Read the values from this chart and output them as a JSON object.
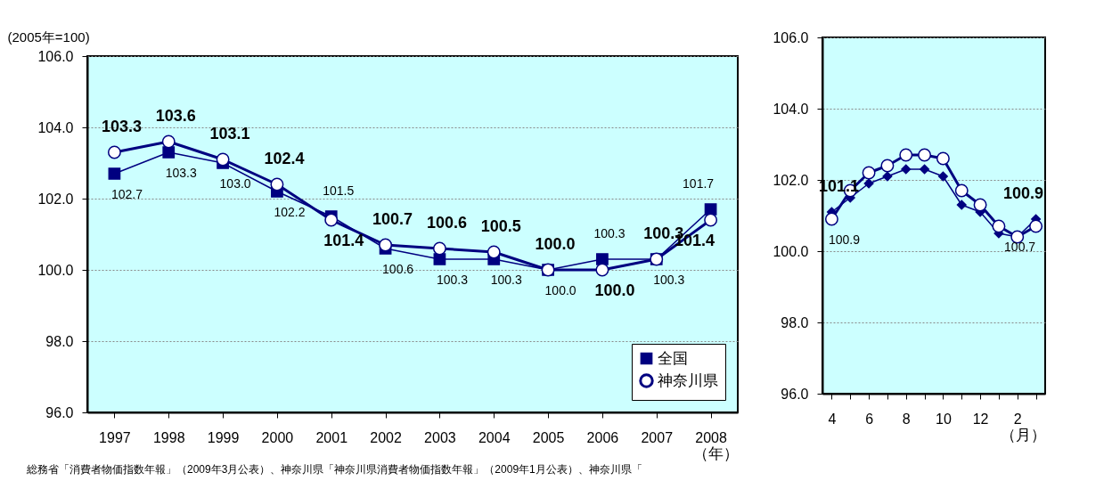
{
  "chart_data": [
    {
      "type": "line",
      "ylabel": "(2005年=100)",
      "xlabel": "（年）",
      "categories": [
        "1997",
        "1998",
        "1999",
        "2000",
        "2001",
        "2002",
        "2003",
        "2004",
        "2005",
        "2006",
        "2007",
        "2008"
      ],
      "ylim": [
        96,
        106
      ],
      "yticks": [
        {
          "value": 96,
          "label": "96.0"
        },
        {
          "value": 98,
          "label": "98.0"
        },
        {
          "value": 100,
          "label": "100.0"
        },
        {
          "value": 102,
          "label": "102.0"
        },
        {
          "value": 104,
          "label": "104.0"
        },
        {
          "value": 106,
          "label": "106.0"
        }
      ],
      "grid": "y",
      "legend": "bottom right",
      "series": [
        {
          "name": "全国",
          "color": "#000080",
          "marker": "square",
          "values": [
            102.7,
            103.3,
            103.0,
            102.2,
            101.5,
            100.6,
            100.3,
            100.3,
            100.0,
            100.3,
            100.3,
            101.7
          ],
          "value_labels": [
            "102.7",
            "103.3",
            "103.0",
            "102.2",
            "101.5",
            "100.6",
            "100.3",
            "100.3",
            "100.0",
            "100.3",
            "100.3",
            "101.7"
          ]
        },
        {
          "name": "神奈川県",
          "color": "#000080",
          "marker": "circle",
          "values": [
            103.3,
            103.6,
            103.1,
            102.4,
            101.4,
            100.7,
            100.6,
            100.5,
            100.0,
            100.0,
            100.3,
            101.4
          ],
          "value_labels": [
            "103.3",
            "103.6",
            "103.1",
            "102.4",
            "101.4",
            "100.7",
            "100.6",
            "100.5",
            "100.0",
            "100.0",
            "100.3",
            "101.4"
          ]
        }
      ],
      "annotations": [
        "総務省「消費者物価指数年報」（2009年3月公表）、神奈川県「神奈川県消費者物価指数年報」（2009年1月公表）、神奈川県「"
      ]
    },
    {
      "type": "line",
      "xlabel": "（月）",
      "categories": [
        "4",
        null,
        "6",
        null,
        "8",
        null,
        "10",
        null,
        "12",
        null,
        "2",
        null
      ],
      "ylim": [
        96,
        106
      ],
      "yticks": [
        {
          "value": 96,
          "label": "96.0"
        },
        {
          "value": 98,
          "label": "98.0"
        },
        {
          "value": 100,
          "label": "100.0"
        },
        {
          "value": 102,
          "label": "102.0"
        },
        {
          "value": 104,
          "label": "104.0"
        },
        {
          "value": 106,
          "label": "106.0"
        }
      ],
      "grid": "y",
      "series": [
        {
          "color": "#000080",
          "marker": "diamond",
          "values": [
            101.1,
            101.5,
            101.9,
            102.1,
            102.3,
            102.3,
            102.1,
            101.3,
            101.1,
            100.5,
            100.4,
            100.9
          ],
          "value_labels": [
            "101.1",
            null,
            null,
            null,
            null,
            null,
            null,
            null,
            null,
            null,
            null,
            "100.9"
          ]
        },
        {
          "color": "#000080",
          "marker": "circle",
          "values": [
            100.9,
            101.7,
            102.2,
            102.4,
            102.7,
            102.7,
            102.6,
            101.7,
            101.3,
            100.7,
            100.4,
            100.7
          ],
          "value_labels": [
            "100.9",
            null,
            null,
            null,
            null,
            null,
            null,
            null,
            null,
            null,
            null,
            "100.7"
          ]
        }
      ]
    }
  ]
}
